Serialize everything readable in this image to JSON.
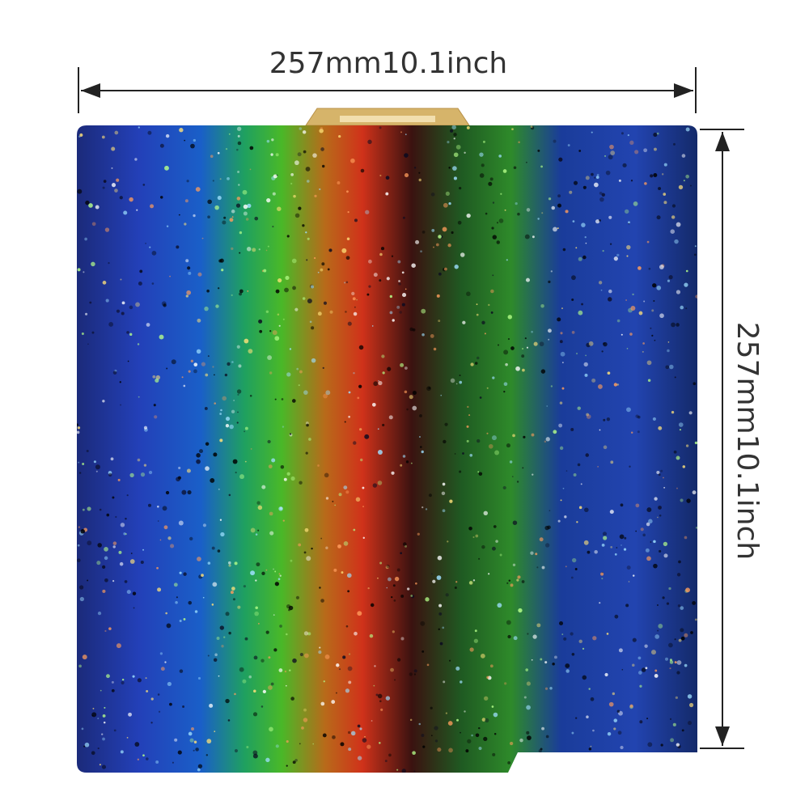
{
  "dimensions": {
    "width": {
      "label": "257mm10.1inch"
    },
    "height": {
      "label": "257mm10.1inch"
    }
  }
}
